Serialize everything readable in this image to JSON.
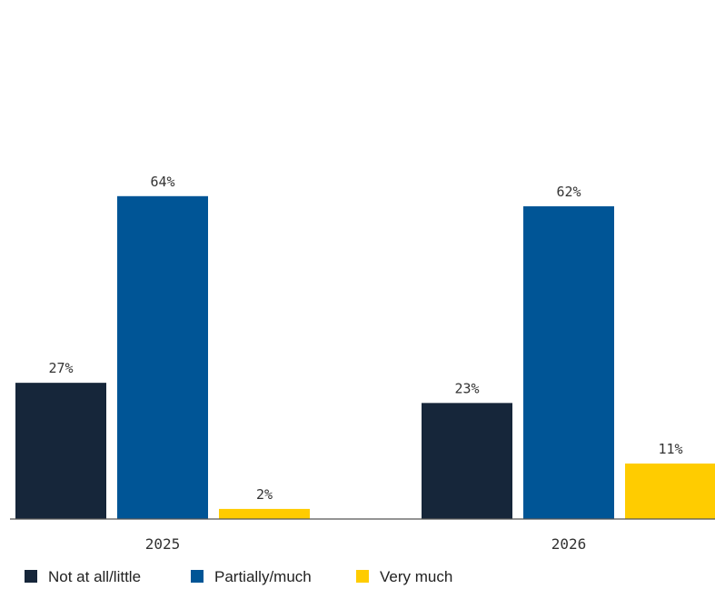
{
  "chart_data": {
    "type": "bar",
    "categories": [
      "2025",
      "2026"
    ],
    "series": [
      {
        "name": "Not at all/little",
        "values": [
          27,
          23
        ],
        "labels": [
          "27%",
          "23%"
        ],
        "color": "#16263a"
      },
      {
        "name": "Partially/much",
        "values": [
          64,
          62
        ],
        "labels": [
          "64%",
          "62%"
        ],
        "color": "#005596"
      },
      {
        "name": "Very much",
        "values": [
          2,
          11
        ],
        "labels": [
          "2%",
          "11%"
        ],
        "color": "#ffcc00"
      }
    ],
    "ylim": [
      0,
      100
    ],
    "grid": false,
    "legend_position": "bottom-left",
    "axis_color": "#555555"
  }
}
